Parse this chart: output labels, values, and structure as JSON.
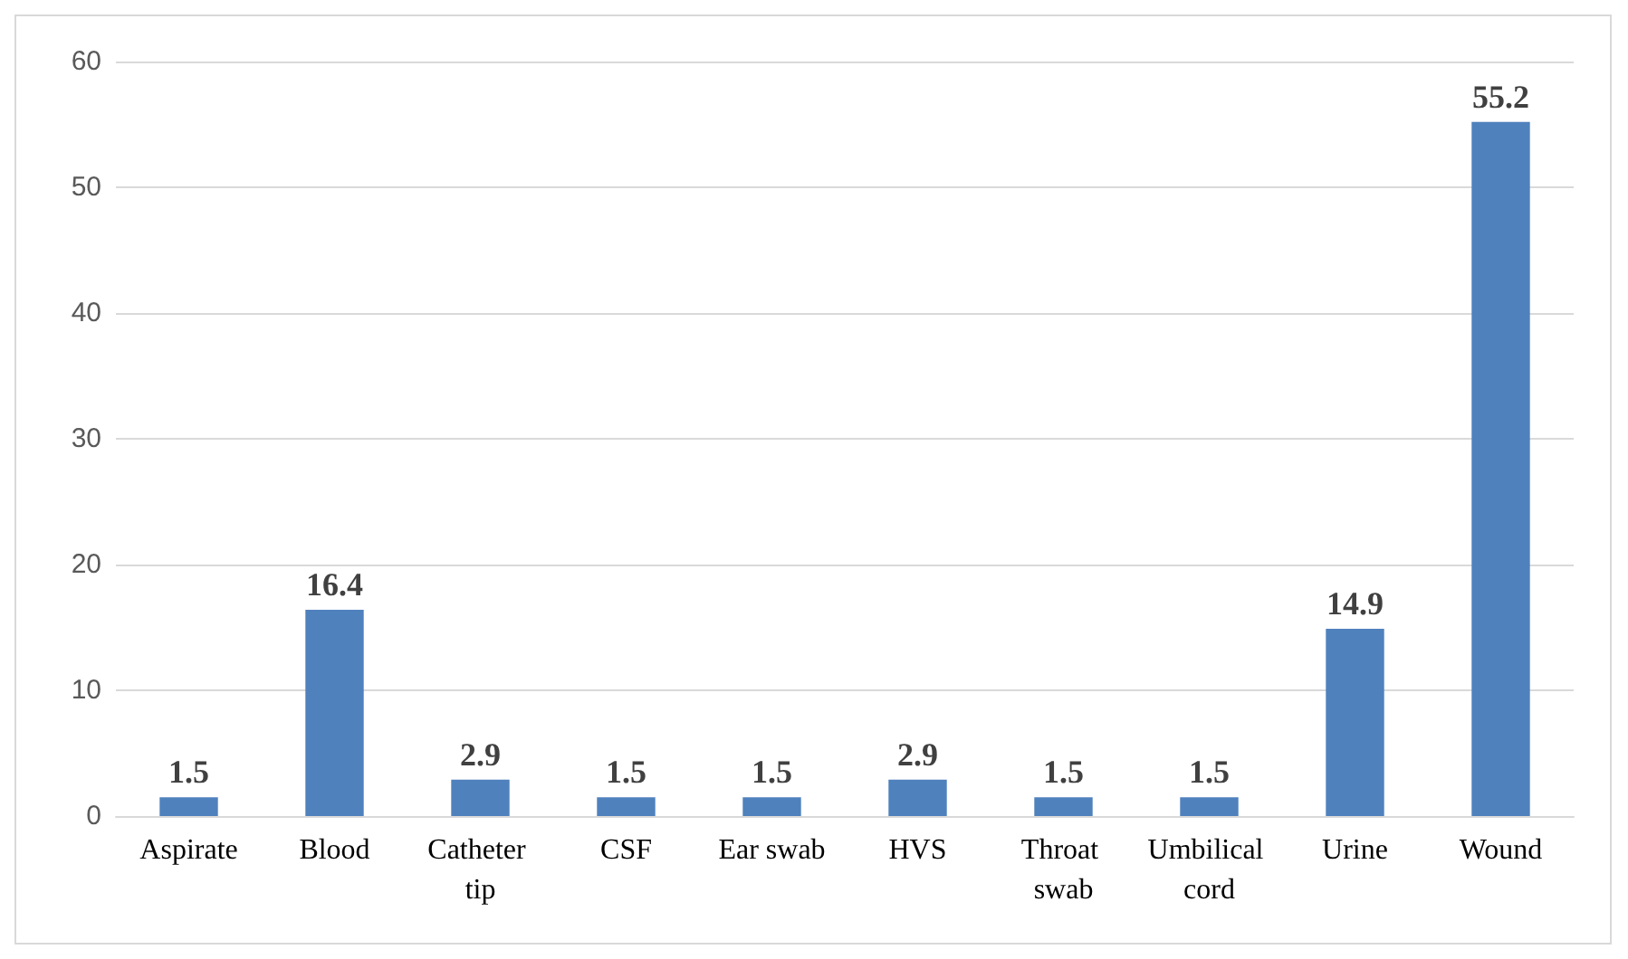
{
  "chart_data": {
    "type": "bar",
    "categories": [
      "Aspirate",
      "Blood",
      "Catheter tip",
      "CSF",
      "Ear swab",
      "HVS",
      "Throat swab",
      "Umbilical cord",
      "Urine",
      "Wound"
    ],
    "values": [
      1.5,
      16.4,
      2.9,
      1.5,
      1.5,
      2.9,
      1.5,
      1.5,
      14.9,
      55.2
    ],
    "color": "#4f81bd",
    "ylim": [
      0,
      60
    ],
    "yticks": [
      0,
      10,
      20,
      30,
      40,
      50,
      60
    ],
    "grid": "y",
    "data_labels": true
  }
}
